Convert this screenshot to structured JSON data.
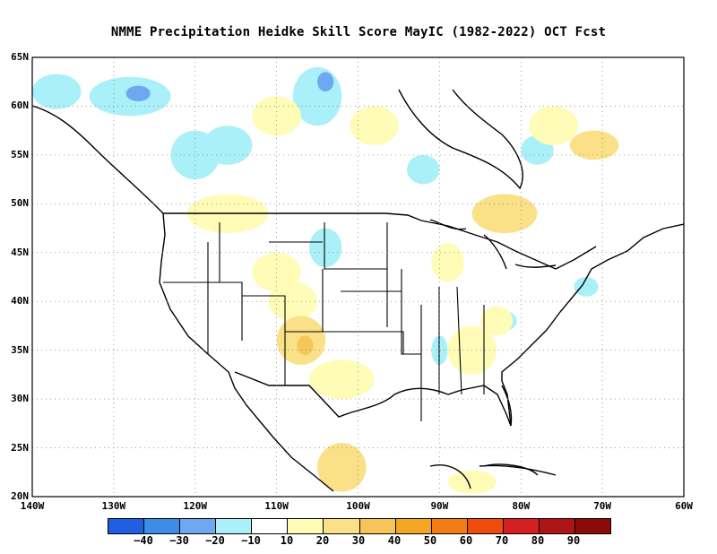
{
  "title": "NMME  Precipitation Heidke Skill Score MayIC (1982-2022) OCT Fcst",
  "lat_labels": [
    "65N",
    "60N",
    "55N",
    "50N",
    "45N",
    "40N",
    "35N",
    "30N",
    "25N",
    "20N"
  ],
  "lon_labels": [
    "140W",
    "130W",
    "120W",
    "110W",
    "100W",
    "90W",
    "80W",
    "70W",
    "60W"
  ],
  "legend": {
    "colors": [
      "#1f5fe0",
      "#3c8ce8",
      "#6fa8f0",
      "#aaf0f8",
      "#ffffff",
      "#fffcb8",
      "#fae187",
      "#f8c55a",
      "#f5a623",
      "#f27d14",
      "#ef4b0a",
      "#d42020",
      "#b01515",
      "#8c0a0a"
    ],
    "ticks": [
      "−40",
      "−30",
      "−20",
      "−10",
      "10",
      "20",
      "30",
      "40",
      "50",
      "60",
      "70",
      "80",
      "90"
    ]
  },
  "map_data": {
    "extent": {
      "lon": [
        -140,
        -60
      ],
      "lat": [
        20,
        65
      ]
    },
    "skill_patches": [
      {
        "lon": -137,
        "lat": 61.5,
        "rx": 3,
        "ry": 1.8,
        "color": "#aaf0f8"
      },
      {
        "lon": -128,
        "lat": 61,
        "rx": 5,
        "ry": 2,
        "color": "#aaf0f8"
      },
      {
        "lon": -127,
        "lat": 61.3,
        "rx": 1.5,
        "ry": 0.8,
        "color": "#6fa8f0"
      },
      {
        "lon": -120,
        "lat": 55,
        "rx": 3,
        "ry": 2.5,
        "color": "#aaf0f8"
      },
      {
        "lon": -116,
        "lat": 56,
        "rx": 3,
        "ry": 2,
        "color": "#aaf0f8"
      },
      {
        "lon": -105,
        "lat": 61,
        "rx": 3,
        "ry": 3,
        "color": "#aaf0f8"
      },
      {
        "lon": -104,
        "lat": 62.5,
        "rx": 1,
        "ry": 1,
        "color": "#6fa8f0"
      },
      {
        "lon": -92,
        "lat": 53.5,
        "rx": 2,
        "ry": 1.5,
        "color": "#aaf0f8"
      },
      {
        "lon": -78,
        "lat": 55.5,
        "rx": 2,
        "ry": 1.5,
        "color": "#aaf0f8"
      },
      {
        "lon": -104,
        "lat": 45.5,
        "rx": 2,
        "ry": 2,
        "color": "#aaf0f8"
      },
      {
        "lon": -82,
        "lat": 38,
        "rx": 1.5,
        "ry": 1,
        "color": "#aaf0f8"
      },
      {
        "lon": -72,
        "lat": 41.5,
        "rx": 1.5,
        "ry": 1,
        "color": "#aaf0f8"
      },
      {
        "lon": -90,
        "lat": 35,
        "rx": 1,
        "ry": 1.5,
        "color": "#aaf0f8"
      },
      {
        "lon": -110,
        "lat": 59,
        "rx": 3,
        "ry": 2,
        "color": "#fffcb8"
      },
      {
        "lon": -98,
        "lat": 58,
        "rx": 3,
        "ry": 2,
        "color": "#fffcb8"
      },
      {
        "lon": -76,
        "lat": 58,
        "rx": 3,
        "ry": 2,
        "color": "#fffcb8"
      },
      {
        "lon": -71,
        "lat": 56,
        "rx": 3,
        "ry": 1.5,
        "color": "#fae187"
      },
      {
        "lon": -82,
        "lat": 49,
        "rx": 4,
        "ry": 2,
        "color": "#fae187"
      },
      {
        "lon": -116,
        "lat": 49,
        "rx": 5,
        "ry": 2,
        "color": "#fffcb8"
      },
      {
        "lon": -110,
        "lat": 43,
        "rx": 3,
        "ry": 2,
        "color": "#fffcb8"
      },
      {
        "lon": -108,
        "lat": 40,
        "rx": 3,
        "ry": 2,
        "color": "#fffcb8"
      },
      {
        "lon": -107,
        "lat": 36,
        "rx": 3,
        "ry": 2.5,
        "color": "#fae187"
      },
      {
        "lon": -106.5,
        "lat": 35.5,
        "rx": 1,
        "ry": 1,
        "color": "#f8c55a"
      },
      {
        "lon": -102,
        "lat": 32,
        "rx": 4,
        "ry": 2,
        "color": "#fffcb8"
      },
      {
        "lon": -86,
        "lat": 35,
        "rx": 3,
        "ry": 2.5,
        "color": "#fffcb8"
      },
      {
        "lon": -83,
        "lat": 38,
        "rx": 2,
        "ry": 1.5,
        "color": "#fffcb8"
      },
      {
        "lon": -89,
        "lat": 44,
        "rx": 2,
        "ry": 2,
        "color": "#fffcb8"
      },
      {
        "lon": -102,
        "lat": 23,
        "rx": 3,
        "ry": 2.5,
        "color": "#fae187"
      },
      {
        "lon": -86,
        "lat": 21.5,
        "rx": 3,
        "ry": 1.2,
        "color": "#fffcb8"
      }
    ]
  }
}
